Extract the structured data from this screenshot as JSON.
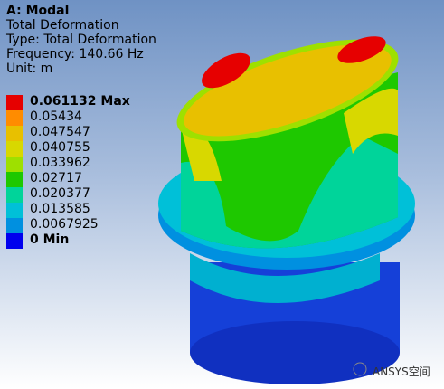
{
  "header": {
    "title": "A: Modal",
    "lines": [
      "Total Deformation",
      "Type: Total Deformation",
      "Frequency: 140.66 Hz",
      "Unit: m"
    ]
  },
  "legend": [
    {
      "label": "0.061132 Max",
      "color": "#e60000"
    },
    {
      "label": "0.05434",
      "color": "#ff8c00"
    },
    {
      "label": "0.047547",
      "color": "#e8c000"
    },
    {
      "label": "0.040755",
      "color": "#d8d800"
    },
    {
      "label": "0.033962",
      "color": "#9ee000"
    },
    {
      "label": "0.02717",
      "color": "#1ec800"
    },
    {
      "label": "0.020377",
      "color": "#00d49a"
    },
    {
      "label": "0.013585",
      "color": "#00c0d8"
    },
    {
      "label": "0.0067925",
      "color": "#0090e0"
    },
    {
      "label": "0 Min",
      "color": "#0000ee"
    }
  ],
  "watermark": "ANSYS空间"
}
